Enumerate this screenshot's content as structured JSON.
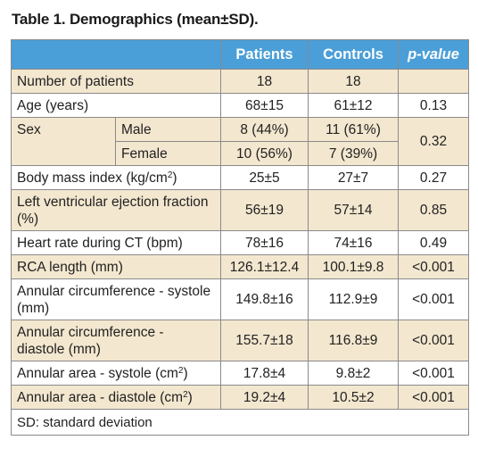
{
  "caption": "Table 1. Demographics (mean±SD).",
  "columns": {
    "patients": "Patients",
    "controls": "Controls",
    "pvalue": "p-value"
  },
  "rows": {
    "number": {
      "label": "Number of patients",
      "patients": "18",
      "controls": "18",
      "p": ""
    },
    "age": {
      "label": "Age (years)",
      "patients": "68±15",
      "controls": "61±12",
      "p": "0.13"
    },
    "sex": {
      "label": "Sex",
      "p": "0.32",
      "male": {
        "label": "Male",
        "patients": "8 (44%)",
        "controls": "11 (61%)"
      },
      "female": {
        "label": "Female",
        "patients": "10 (56%)",
        "controls": "7 (39%)"
      }
    },
    "bmi": {
      "label": "Body mass index (kg/cm",
      "sup": "2",
      "label_end": ")",
      "patients": "25±5",
      "controls": "27±7",
      "p": "0.27"
    },
    "lvef": {
      "label": "Left ventricular ejection fraction (%)",
      "patients": "56±19",
      "controls": "57±14",
      "p": "0.85"
    },
    "hr": {
      "label": "Heart rate during CT (bpm)",
      "patients": "78±16",
      "controls": "74±16",
      "p": "0.49"
    },
    "rca": {
      "label": "RCA length (mm)",
      "patients": "126.1±12.4",
      "controls": "100.1±9.8",
      "p": "<0.001"
    },
    "circ_sys": {
      "label": "Annular circumference - systole (mm)",
      "patients": "149.8±16",
      "controls": "112.9±9",
      "p": "<0.001"
    },
    "circ_dia": {
      "label": "Annular circumference - diastole (mm)",
      "patients": "155.7±18",
      "controls": "116.8±9",
      "p": "<0.001"
    },
    "area_sys": {
      "label": "Annular area - systole (cm",
      "sup": "2",
      "label_end": ")",
      "patients": "17.8±4",
      "controls": "9.8±2",
      "p": "<0.001"
    },
    "area_dia": {
      "label": "Annular area - diastole (cm",
      "sup": "2",
      "label_end": ")",
      "patients": "19.2±4",
      "controls": "10.5±2",
      "p": "<0.001"
    }
  },
  "footnote": "SD: standard deviation",
  "colors": {
    "header": "#4b9fd8",
    "shade": "#f3e7cf",
    "border": "#8a8a8a"
  }
}
